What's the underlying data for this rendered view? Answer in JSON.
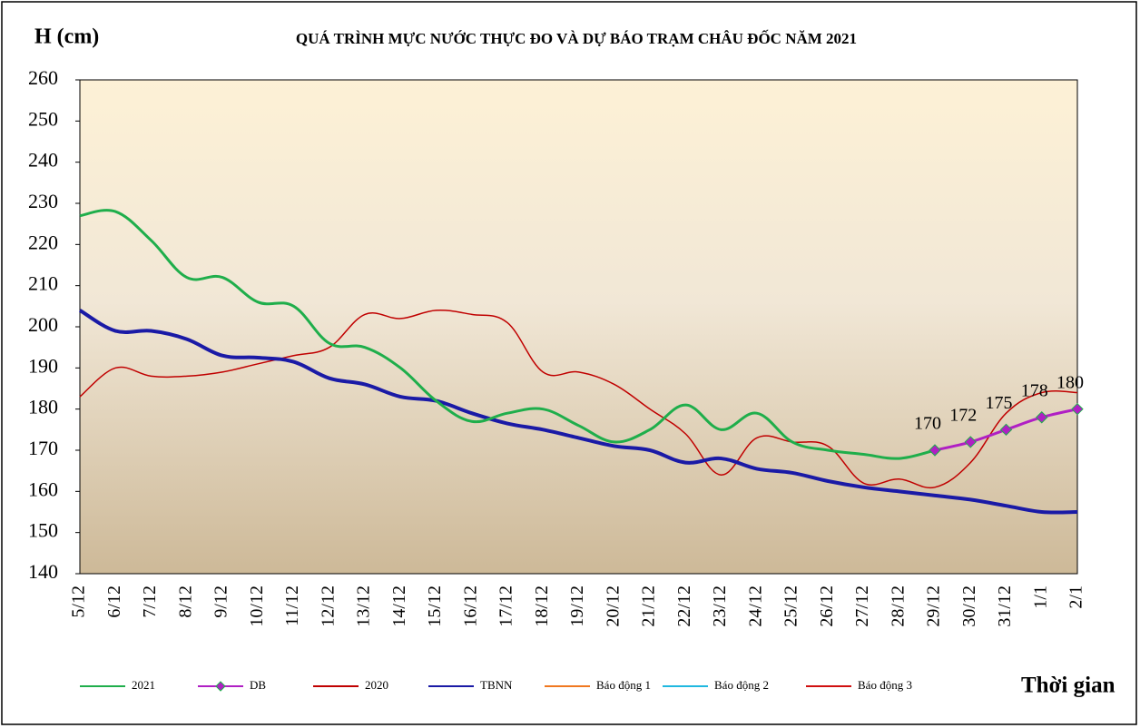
{
  "chart_data": {
    "type": "line",
    "title": "QUÁ TRÌNH MỰC NƯỚC THỰC ĐO VÀ DỰ BÁO TRẠM CHÂU ĐỐC NĂM 2021",
    "y_label": "H (cm)",
    "x_label": "Thời gian",
    "categories": [
      "5/12",
      "6/12",
      "7/12",
      "8/12",
      "9/12",
      "10/12",
      "11/12",
      "12/12",
      "13/12",
      "14/12",
      "15/12",
      "16/12",
      "17/12",
      "18/12",
      "19/12",
      "20/12",
      "21/12",
      "22/12",
      "23/12",
      "24/12",
      "25/12",
      "26/12",
      "27/12",
      "28/12",
      "29/12",
      "30/12",
      "31/12",
      "1/1",
      "2/1"
    ],
    "ylim": [
      140,
      260
    ],
    "yticks": [
      140,
      150,
      160,
      170,
      180,
      190,
      200,
      210,
      220,
      230,
      240,
      250,
      260
    ],
    "grid": false,
    "series": [
      {
        "name": "2021",
        "color": "#1fae4b",
        "width": 3,
        "values": [
          227,
          228,
          221,
          212,
          212,
          206,
          205,
          196,
          195,
          190,
          182,
          177,
          179,
          180,
          176,
          172,
          175,
          181,
          175,
          179,
          172,
          170,
          169,
          168,
          170,
          null,
          null,
          null,
          null
        ]
      },
      {
        "name": "DB",
        "color": "#b01fc4",
        "marker": "diamond",
        "width": 3,
        "values": [
          null,
          null,
          null,
          null,
          null,
          null,
          null,
          null,
          null,
          null,
          null,
          null,
          null,
          null,
          null,
          null,
          null,
          null,
          null,
          null,
          null,
          null,
          null,
          null,
          170,
          172,
          175,
          178,
          180
        ]
      },
      {
        "name": "2020",
        "color": "#c00000",
        "width": 1.5,
        "values": [
          183,
          190,
          188,
          188,
          189,
          191,
          193,
          195,
          203,
          202,
          204,
          203,
          201,
          189,
          189,
          186,
          180,
          174,
          164,
          173,
          172,
          171,
          162,
          163,
          161,
          167,
          179,
          184,
          184
        ]
      },
      {
        "name": "TBNN",
        "color": "#1a1aa6",
        "width": 4,
        "values": [
          204,
          199,
          199,
          197,
          193,
          192.5,
          191.5,
          187.5,
          186,
          183,
          182,
          179,
          176.5,
          175,
          173,
          171,
          170,
          167,
          168,
          165.5,
          164.5,
          162.5,
          161,
          160,
          159,
          158,
          156.5,
          155,
          155
        ]
      },
      {
        "name": "Báo động 1",
        "color": "#f07820",
        "width": 1.5,
        "values": [
          null,
          null,
          null,
          null,
          null,
          null,
          null,
          null,
          null,
          null,
          null,
          null,
          null,
          null,
          null,
          null,
          null,
          null,
          null,
          null,
          null,
          null,
          null,
          null,
          null,
          null,
          null,
          null,
          null
        ]
      },
      {
        "name": "Báo động 2",
        "color": "#20b8e0",
        "width": 1.5,
        "values": [
          null,
          null,
          null,
          null,
          null,
          null,
          null,
          null,
          null,
          null,
          null,
          null,
          null,
          null,
          null,
          null,
          null,
          null,
          null,
          null,
          null,
          null,
          null,
          null,
          null,
          null,
          null,
          null,
          null
        ]
      },
      {
        "name": "Báo động 3",
        "color": "#d01010",
        "width": 1.5,
        "values": [
          null,
          null,
          null,
          null,
          null,
          null,
          null,
          null,
          null,
          null,
          null,
          null,
          null,
          null,
          null,
          null,
          null,
          null,
          null,
          null,
          null,
          null,
          null,
          null,
          null,
          null,
          null,
          null,
          null
        ]
      }
    ]
  }
}
